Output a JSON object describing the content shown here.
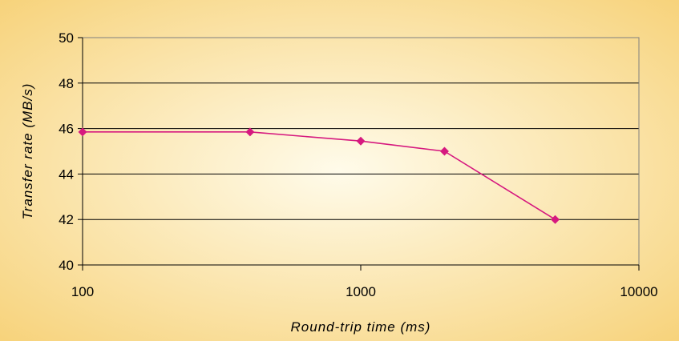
{
  "chart_data": {
    "type": "line",
    "title": "",
    "xlabel": "Round-trip time (ms)",
    "ylabel": "Transfer rate (MB/s)",
    "x_scale": "log",
    "xlim": [
      100,
      10000
    ],
    "ylim": [
      40,
      50
    ],
    "x_ticks": [
      100,
      1000,
      10000
    ],
    "x_tick_labels": [
      "100",
      "1000",
      "10000"
    ],
    "y_ticks": [
      40,
      42,
      44,
      46,
      48,
      50
    ],
    "y_tick_labels": [
      "40",
      "42",
      "44",
      "46",
      "48",
      "50"
    ],
    "grid": "horizontal",
    "legend": "none",
    "series": [
      {
        "color": "#d6197f",
        "marker": "diamond",
        "points": [
          {
            "x": 100,
            "y": 45.85
          },
          {
            "x": 400,
            "y": 45.85
          },
          {
            "x": 1000,
            "y": 45.45
          },
          {
            "x": 2000,
            "y": 45.0
          },
          {
            "x": 5000,
            "y": 42.0
          }
        ]
      }
    ],
    "colors": {
      "background_center": "#fffbea",
      "background_edge": "#f7d37c",
      "plot_border": "#808080",
      "gridline": "#000000"
    }
  }
}
